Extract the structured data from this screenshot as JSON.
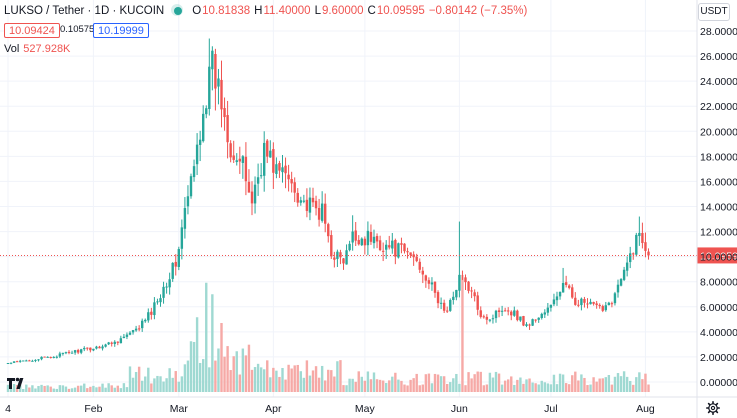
{
  "header": {
    "symbol": "LUKSO / Tether · 1D · KUCOIN",
    "open_label": "O",
    "open": "10.81838",
    "high_label": "H",
    "high": "11.40000",
    "low_label": "L",
    "low": "9.60000",
    "close_label": "C",
    "close": "10.09595",
    "change": "−0.80142 (−7.35%)"
  },
  "trade": {
    "sell": "10.09424",
    "spread": "0.10575",
    "buy": "10.19999"
  },
  "volume": {
    "label": "Vol",
    "value": "527.928K"
  },
  "currency_button": "USDT",
  "price_axis_partial": "3",
  "colors": {
    "up": "#26a69a",
    "down": "#ef5350",
    "vol_up": "#9fd9d2",
    "vol_down": "#f6a9a6",
    "last_price": "#ef5350",
    "grid": "#f0f3fa"
  },
  "chart_data": {
    "type": "candlestick",
    "symbol": "LUKSO / Tether",
    "interval": "1D",
    "exchange": "KUCOIN",
    "y_ticks": [
      "28.00000",
      "26.00000",
      "24.00000",
      "22.00000",
      "20.00000",
      "18.00000",
      "16.00000",
      "14.00000",
      "12.00000",
      "10.00000",
      "8.00000",
      "6.00000",
      "4.00000",
      "2.00000",
      "0.00000"
    ],
    "ylim": [
      -0.8,
      29.6
    ],
    "x_ticks": [
      {
        "label": "4",
        "day": 0
      },
      {
        "label": "Feb",
        "day": 28
      },
      {
        "label": "Mar",
        "day": 56
      },
      {
        "label": "Apr",
        "day": 87
      },
      {
        "label": "May",
        "day": 117
      },
      {
        "label": "Jun",
        "day": 148
      },
      {
        "label": "Jul",
        "day": 178
      },
      {
        "label": "Aug",
        "day": 209
      }
    ],
    "last_price": {
      "value": 10.09595,
      "label": "10.09595"
    },
    "anchors": [
      {
        "day": 0,
        "close": 1.5
      },
      {
        "day": 14,
        "close": 2.0
      },
      {
        "day": 21,
        "close": 2.4
      },
      {
        "day": 28,
        "close": 2.7
      },
      {
        "day": 35,
        "close": 3.2
      },
      {
        "day": 42,
        "close": 4.1
      },
      {
        "day": 47,
        "close": 5.6
      },
      {
        "day": 51,
        "close": 7.6
      },
      {
        "day": 55,
        "close": 9.5
      },
      {
        "day": 58,
        "close": 13.5
      },
      {
        "day": 61,
        "close": 17.0
      },
      {
        "day": 64,
        "close": 22.0
      },
      {
        "day": 67,
        "close": 25.0
      },
      {
        "day": 70,
        "close": 22.5
      },
      {
        "day": 73,
        "close": 19.0
      },
      {
        "day": 77,
        "close": 17.0
      },
      {
        "day": 80,
        "close": 14.5
      },
      {
        "day": 84,
        "close": 18.5
      },
      {
        "day": 88,
        "close": 17.0
      },
      {
        "day": 93,
        "close": 16.0
      },
      {
        "day": 98,
        "close": 14.0
      },
      {
        "day": 103,
        "close": 13.5
      },
      {
        "day": 106,
        "close": 10.5
      },
      {
        "day": 110,
        "close": 9.5
      },
      {
        "day": 113,
        "close": 11.5
      },
      {
        "day": 118,
        "close": 11.5
      },
      {
        "day": 123,
        "close": 11.0
      },
      {
        "day": 128,
        "close": 10.5
      },
      {
        "day": 133,
        "close": 10.0
      },
      {
        "day": 137,
        "close": 8.5
      },
      {
        "day": 141,
        "close": 6.5
      },
      {
        "day": 144,
        "close": 5.5
      },
      {
        "day": 148,
        "close": 8.5
      },
      {
        "day": 151,
        "close": 7.5
      },
      {
        "day": 155,
        "close": 5.5
      },
      {
        "day": 158,
        "close": 5.0
      },
      {
        "day": 162,
        "close": 6.0
      },
      {
        "day": 166,
        "close": 5.5
      },
      {
        "day": 170,
        "close": 4.5
      },
      {
        "day": 174,
        "close": 5.2
      },
      {
        "day": 178,
        "close": 6.0
      },
      {
        "day": 182,
        "close": 7.8
      },
      {
        "day": 186,
        "close": 6.5
      },
      {
        "day": 190,
        "close": 6.2
      },
      {
        "day": 194,
        "close": 5.8
      },
      {
        "day": 198,
        "close": 6.6
      },
      {
        "day": 202,
        "close": 8.6
      },
      {
        "day": 205,
        "close": 10.8
      },
      {
        "day": 207,
        "close": 11.8
      },
      {
        "day": 209,
        "close": 10.9
      },
      {
        "day": 210,
        "close": 10.1
      }
    ],
    "spikes": [
      {
        "day": 66,
        "high": 27.4
      },
      {
        "day": 148,
        "high": 12.8
      },
      {
        "day": 207,
        "high": 13.2
      },
      {
        "day": 84,
        "high": 20.0
      },
      {
        "day": 113,
        "high": 13.3
      },
      {
        "day": 182,
        "high": 9.1
      }
    ],
    "volume_spikes": [
      {
        "day": 65,
        "vol": 0.95
      },
      {
        "day": 67,
        "vol": 0.85
      },
      {
        "day": 149,
        "vol": 1.0
      },
      {
        "day": 62,
        "vol": 0.65
      },
      {
        "day": 70,
        "vol": 0.6
      }
    ]
  }
}
